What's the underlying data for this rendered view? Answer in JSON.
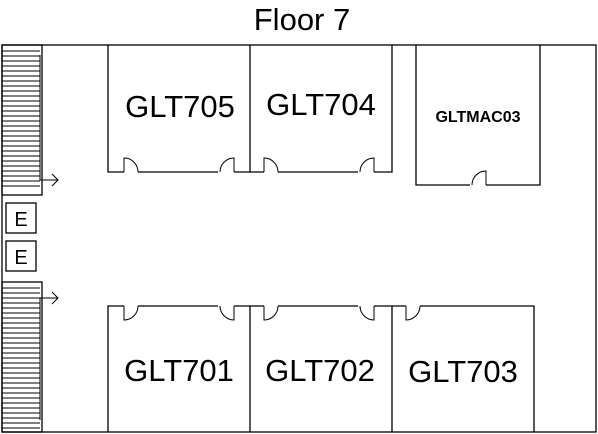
{
  "title": "Floor 7",
  "rooms": {
    "glt705": "GLT705",
    "glt704": "GLT704",
    "gltmac03": "GLTMAC03",
    "glt701": "GLT701",
    "glt702": "GLT702",
    "glt703": "GLT703"
  },
  "elevators": [
    "E",
    "E"
  ]
}
